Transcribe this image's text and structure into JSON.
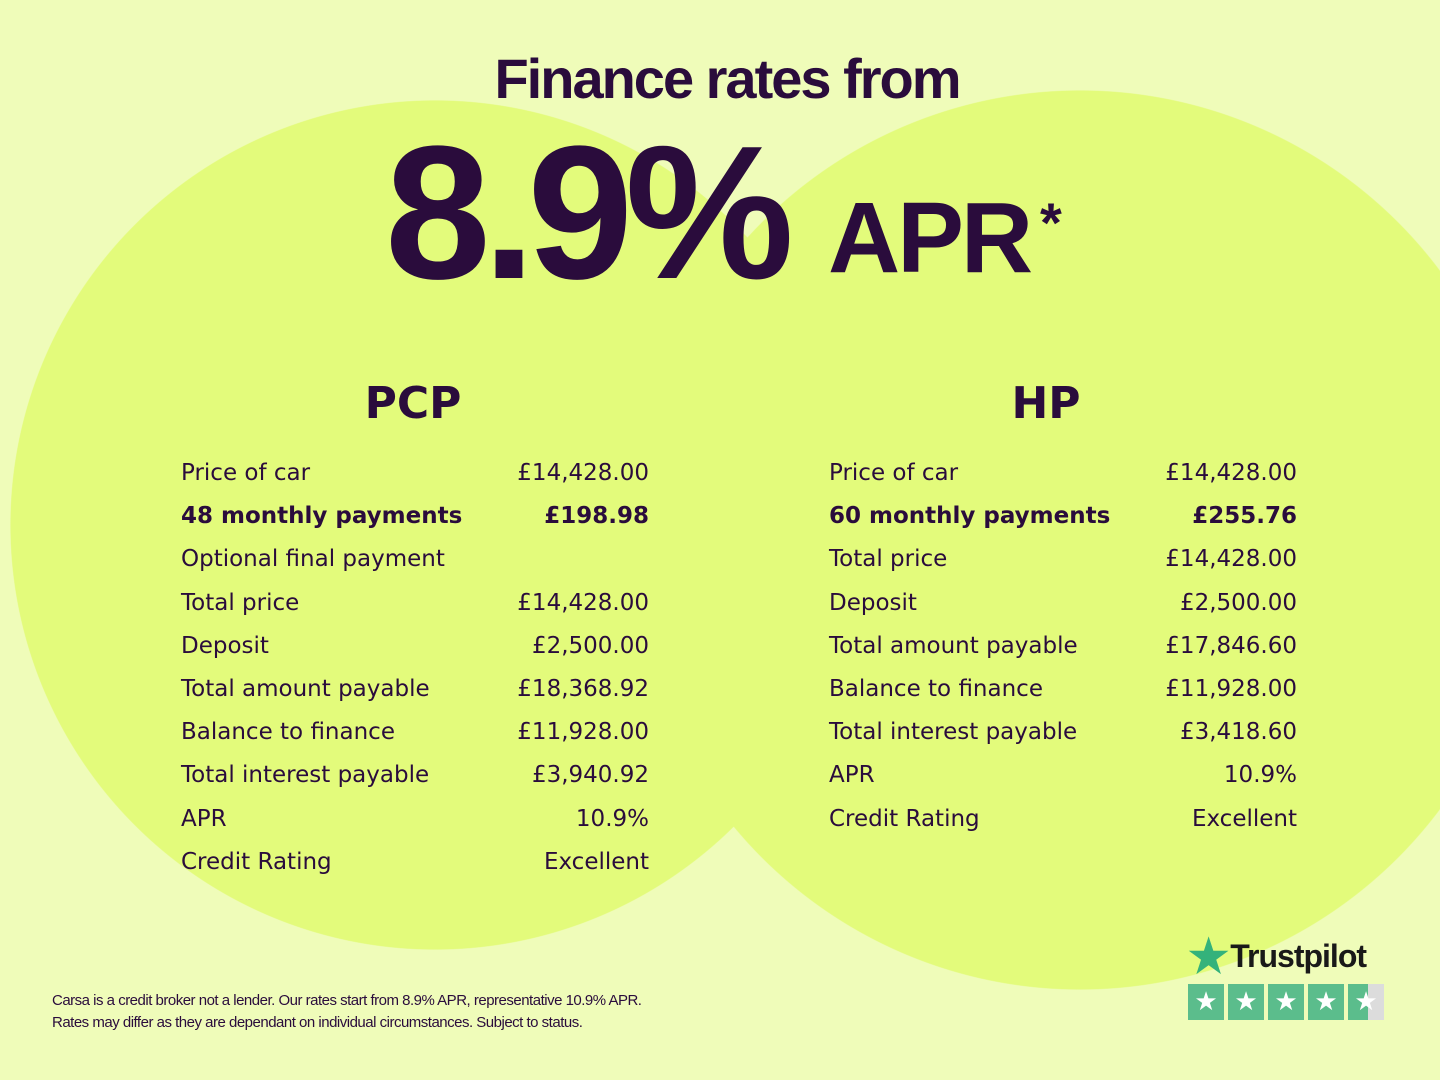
{
  "headline": {
    "title": "Finance rates from",
    "rate": "8.9%",
    "apr": "APR",
    "asterisk": "*"
  },
  "pcp": {
    "heading": "PCP",
    "rows": [
      {
        "label": "Price of car",
        "value": "£14,428.00",
        "bold": false
      },
      {
        "label": "48 monthly payments",
        "value": "£198.98",
        "bold": true
      },
      {
        "label": "Optional final payment",
        "value": "",
        "bold": false
      },
      {
        "label": "Total price",
        "value": "£14,428.00",
        "bold": false
      },
      {
        "label": "Deposit",
        "value": "£2,500.00",
        "bold": false
      },
      {
        "label": "Total amount payable",
        "value": "£18,368.92",
        "bold": false
      },
      {
        "label": "Balance to finance",
        "value": "£11,928.00",
        "bold": false
      },
      {
        "label": "Total interest payable",
        "value": "£3,940.92",
        "bold": false
      },
      {
        "label": "APR",
        "value": "10.9%",
        "bold": false
      },
      {
        "label": "Credit Rating",
        "value": "Excellent",
        "bold": false
      }
    ]
  },
  "hp": {
    "heading": "HP",
    "rows": [
      {
        "label": "Price of car",
        "value": "£14,428.00",
        "bold": false
      },
      {
        "label": "60 monthly payments",
        "value": "£255.76",
        "bold": true
      },
      {
        "label": "Total price",
        "value": "£14,428.00",
        "bold": false
      },
      {
        "label": "Deposit",
        "value": "£2,500.00",
        "bold": false
      },
      {
        "label": "Total amount payable",
        "value": "£17,846.60",
        "bold": false
      },
      {
        "label": "Balance to finance",
        "value": "£11,928.00",
        "bold": false
      },
      {
        "label": "Total interest payable",
        "value": "£3,418.60",
        "bold": false
      },
      {
        "label": "APR",
        "value": "10.9%",
        "bold": false
      },
      {
        "label": "Credit Rating",
        "value": "Excellent",
        "bold": false
      }
    ]
  },
  "footer": {
    "line1": "Carsa is a credit broker not a lender. Our rates start from 8.9% APR, representative 10.9% APR.",
    "line2": "Rates may differ as they are dependant on individual circumstances. Subject to status."
  },
  "trustpilot": {
    "name": "Trustpilot",
    "rating_stars": 4.5,
    "max_stars": 5,
    "color": "#34b27b"
  },
  "colors": {
    "background": "#effcb9",
    "circle": "#e3fb7b",
    "text": "#2a0c3c"
  }
}
